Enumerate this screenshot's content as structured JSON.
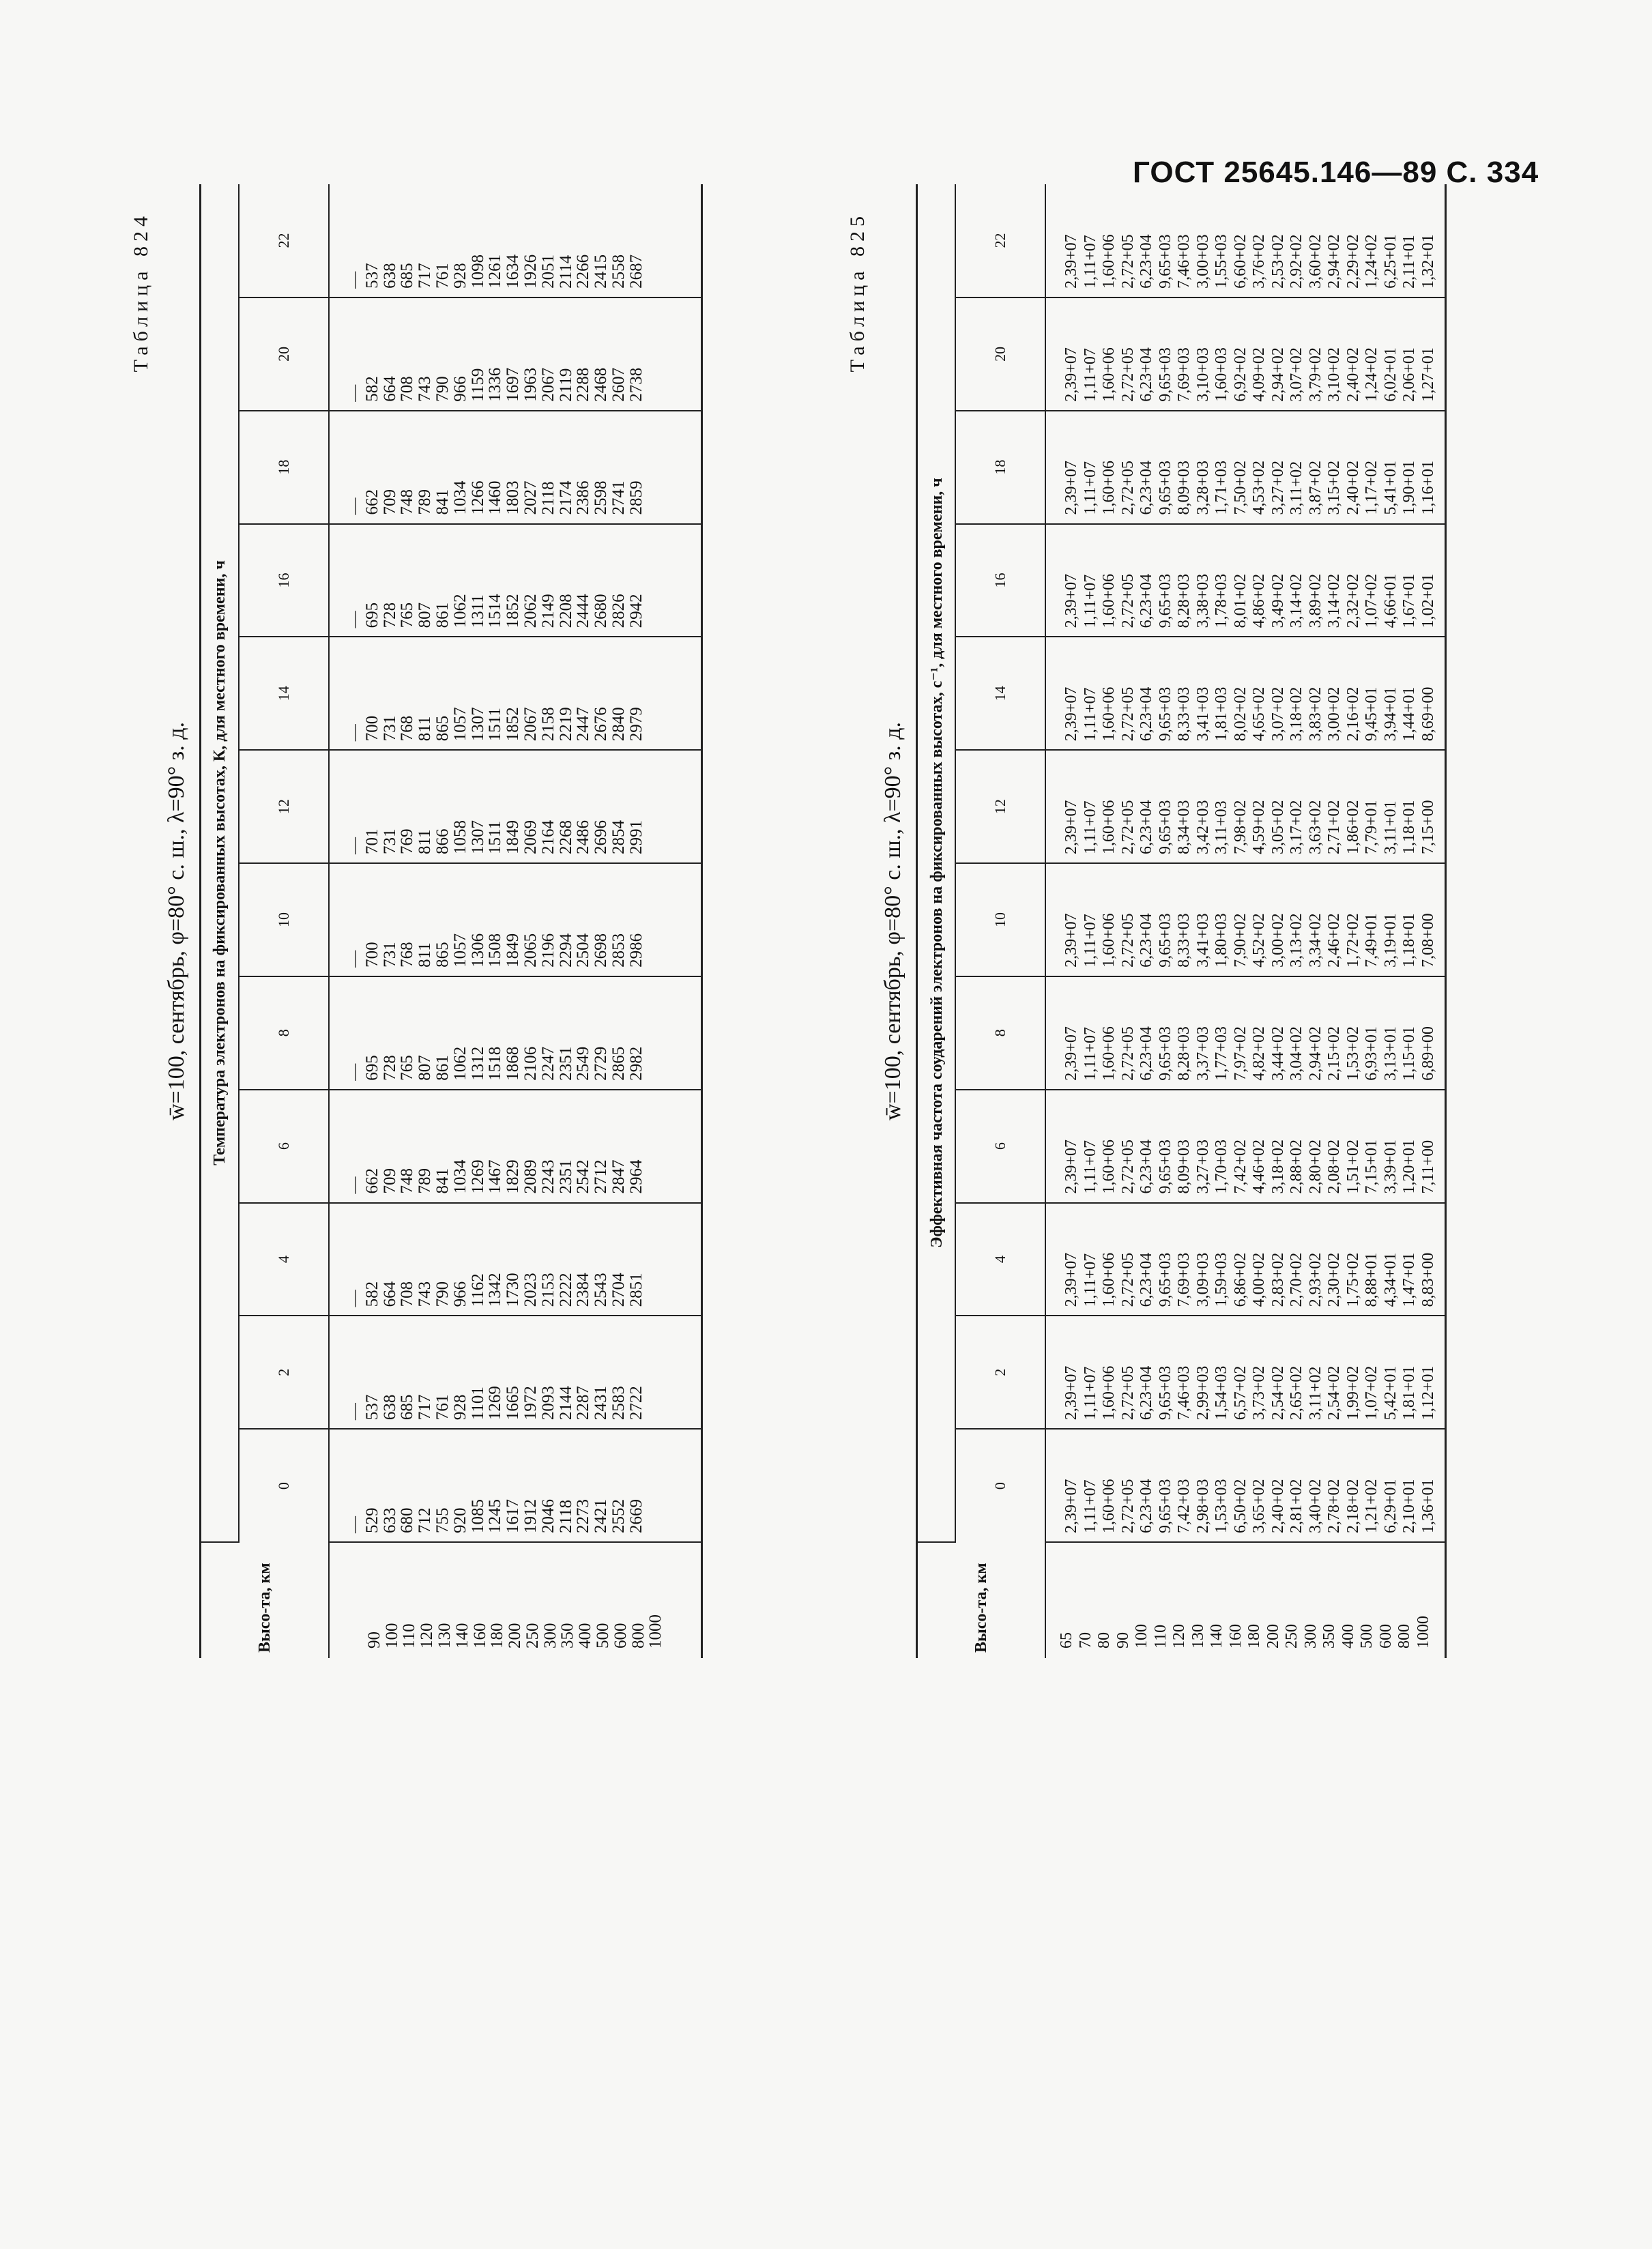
{
  "page_header": "ГОСТ 25645.146—89 С. 334",
  "hour_labels": [
    "0",
    "2",
    "4",
    "6",
    "8",
    "10",
    "12",
    "14",
    "16",
    "18",
    "20",
    "22"
  ],
  "table824": {
    "label": "Таблица 824",
    "subtitle": "w̄=100, сентябрь, φ=80° с. ш., λ=90° з. д.",
    "height_header": "Высо-та, км",
    "group_header": "Температура электронов на фиксированных высотах, К, для местного времени, ч",
    "heights": [
      "90",
      "100",
      "110",
      "120",
      "130",
      "140",
      "160",
      "180",
      "200",
      "250",
      "300",
      "350",
      "400",
      "500",
      "600",
      "800",
      "1000"
    ],
    "columns": [
      [
        "—",
        "529",
        "633",
        "680",
        "712",
        "755",
        "920",
        "1085",
        "1245",
        "1617",
        "1912",
        "2046",
        "2118",
        "2273",
        "2421",
        "2552",
        "2669"
      ],
      [
        "—",
        "537",
        "638",
        "685",
        "717",
        "761",
        "928",
        "1101",
        "1269",
        "1665",
        "1972",
        "2093",
        "2144",
        "2287",
        "2431",
        "2583",
        "2722"
      ],
      [
        "—",
        "582",
        "664",
        "708",
        "743",
        "790",
        "966",
        "1162",
        "1342",
        "1730",
        "2023",
        "2153",
        "2222",
        "2384",
        "2543",
        "2704",
        "2851"
      ],
      [
        "—",
        "662",
        "709",
        "748",
        "789",
        "841",
        "1034",
        "1269",
        "1467",
        "1829",
        "2089",
        "2243",
        "2351",
        "2542",
        "2712",
        "2847",
        "2964"
      ],
      [
        "—",
        "695",
        "728",
        "765",
        "807",
        "861",
        "1062",
        "1312",
        "1518",
        "1868",
        "2106",
        "2247",
        "2351",
        "2549",
        "2729",
        "2865",
        "2982"
      ],
      [
        "—",
        "700",
        "731",
        "768",
        "811",
        "865",
        "1057",
        "1306",
        "1508",
        "1849",
        "2065",
        "2196",
        "2294",
        "2504",
        "2698",
        "2853",
        "2986"
      ],
      [
        "—",
        "701",
        "731",
        "769",
        "811",
        "866",
        "1058",
        "1307",
        "1511",
        "1849",
        "2069",
        "2164",
        "2268",
        "2486",
        "2696",
        "2854",
        "2991"
      ],
      [
        "—",
        "700",
        "731",
        "768",
        "811",
        "865",
        "1057",
        "1307",
        "1511",
        "1852",
        "2067",
        "2158",
        "2219",
        "2447",
        "2676",
        "2840",
        "2979"
      ],
      [
        "—",
        "695",
        "728",
        "765",
        "807",
        "861",
        "1062",
        "1311",
        "1514",
        "1852",
        "2062",
        "2149",
        "2208",
        "2444",
        "2680",
        "2826",
        "2942"
      ],
      [
        "—",
        "662",
        "709",
        "748",
        "789",
        "841",
        "1034",
        "1266",
        "1460",
        "1803",
        "2027",
        "2118",
        "2174",
        "2386",
        "2598",
        "2741",
        "2859"
      ],
      [
        "—",
        "582",
        "664",
        "708",
        "743",
        "790",
        "966",
        "1159",
        "1336",
        "1697",
        "1963",
        "2067",
        "2119",
        "2288",
        "2468",
        "2607",
        "2738"
      ],
      [
        "—",
        "537",
        "638",
        "685",
        "717",
        "761",
        "928",
        "1098",
        "1261",
        "1634",
        "1926",
        "2051",
        "2114",
        "2266",
        "2415",
        "2558",
        "2687"
      ]
    ]
  },
  "table825": {
    "label": "Таблица 825",
    "subtitle": "w̄=100, сентябрь, φ=80° с. ш., λ=90° з. д.",
    "height_header": "Высо-та, км",
    "group_header": "Эффективная частота соударений электронов на фиксированных высотах, с⁻¹, для местного времени, ч",
    "heights": [
      "65",
      "70",
      "80",
      "90",
      "100",
      "110",
      "120",
      "130",
      "140",
      "160",
      "180",
      "200",
      "250",
      "300",
      "350",
      "400",
      "500",
      "600",
      "800",
      "1000"
    ],
    "columns": [
      [
        "2,39+07",
        "1,11+07",
        "1,60+06",
        "2,72+05",
        "6,23+04",
        "9,65+03",
        "7,42+03",
        "2,98+03",
        "1,53+03",
        "6,50+02",
        "3,65+02",
        "2,40+02",
        "2,81+02",
        "3,40+02",
        "2,78+02",
        "2,18+02",
        "1,21+02",
        "6,29+01",
        "2,10+01",
        "1,36+01"
      ],
      [
        "2,39+07",
        "1,11+07",
        "1,60+06",
        "2,72+05",
        "6,23+04",
        "9,65+03",
        "7,46+03",
        "2,99+03",
        "1,54+03",
        "6,57+02",
        "3,73+02",
        "2,54+02",
        "2,65+02",
        "3,11+02",
        "2,54+02",
        "1,99+02",
        "1,07+02",
        "5,42+01",
        "1,81+01",
        "1,12+01"
      ],
      [
        "2,39+07",
        "1,11+07",
        "1,60+06",
        "2,72+05",
        "6,23+04",
        "9,65+03",
        "7,69+03",
        "3,09+03",
        "1,59+03",
        "6,86+02",
        "4,00+02",
        "2,83+02",
        "2,70+02",
        "2,93+02",
        "2,30+02",
        "1,75+02",
        "8,88+01",
        "4,34+01",
        "1,47+01",
        "8,83+00"
      ],
      [
        "2,39+07",
        "1,11+07",
        "1,60+06",
        "2,72+05",
        "6,23+04",
        "9,65+03",
        "8,09+03",
        "3,27+03",
        "1,70+03",
        "7,42+02",
        "4,46+02",
        "3,18+02",
        "2,88+02",
        "2,80+02",
        "2,08+02",
        "1,51+02",
        "7,15+01",
        "3,39+01",
        "1,20+01",
        "7,11+00"
      ],
      [
        "2,39+07",
        "1,11+07",
        "1,60+06",
        "2,72+05",
        "6,23+04",
        "9,65+03",
        "8,28+03",
        "3,37+03",
        "1,77+03",
        "7,97+02",
        "4,82+02",
        "3,44+02",
        "3,04+02",
        "2,94+02",
        "2,15+02",
        "1,53+02",
        "6,93+01",
        "3,13+01",
        "1,15+01",
        "6,89+00"
      ],
      [
        "2,39+07",
        "1,11+07",
        "1,60+06",
        "2,72+05",
        "6,23+04",
        "9,65+03",
        "8,33+03",
        "3,41+03",
        "1,80+03",
        "7,90+02",
        "4,52+02",
        "3,00+02",
        "3,13+02",
        "3,34+02",
        "2,46+02",
        "1,72+02",
        "7,49+01",
        "3,19+01",
        "1,18+01",
        "7,08+00"
      ],
      [
        "2,39+07",
        "1,11+07",
        "1,60+06",
        "2,72+05",
        "6,23+04",
        "9,65+03",
        "8,34+03",
        "3,42+03",
        "3,11+03",
        "7,98+02",
        "4,59+02",
        "3,05+02",
        "3,17+02",
        "3,63+02",
        "2,71+02",
        "1,86+02",
        "7,79+01",
        "3,11+01",
        "1,18+01",
        "7,15+00"
      ],
      [
        "2,39+07",
        "1,11+07",
        "1,60+06",
        "2,72+05",
        "6,23+04",
        "9,65+03",
        "8,33+03",
        "3,41+03",
        "1,81+03",
        "8,02+02",
        "4,65+02",
        "3,07+02",
        "3,18+02",
        "3,83+02",
        "3,00+02",
        "2,16+02",
        "9,45+01",
        "3,94+01",
        "1,44+01",
        "8,69+00"
      ],
      [
        "2,39+07",
        "1,11+07",
        "1,60+06",
        "2,72+05",
        "6,23+04",
        "9,65+03",
        "8,28+03",
        "3,38+03",
        "1,78+03",
        "8,01+02",
        "4,86+02",
        "3,49+02",
        "3,14+02",
        "3,89+02",
        "3,14+02",
        "2,32+02",
        "1,07+02",
        "4,66+01",
        "1,67+01",
        "1,02+01"
      ],
      [
        "2,39+07",
        "1,11+07",
        "1,60+06",
        "2,72+05",
        "6,23+04",
        "9,65+03",
        "8,09+03",
        "3,28+03",
        "1,71+03",
        "7,50+02",
        "4,53+02",
        "3,27+02",
        "3,11+02",
        "3,87+02",
        "3,15+02",
        "2,40+02",
        "1,17+02",
        "5,41+01",
        "1,90+01",
        "1,16+01"
      ],
      [
        "2,39+07",
        "1,11+07",
        "1,60+06",
        "2,72+05",
        "6,23+04",
        "9,65+03",
        "7,69+03",
        "3,10+03",
        "1,60+03",
        "6,92+02",
        "4,09+02",
        "2,94+02",
        "3,07+02",
        "3,79+02",
        "3,10+02",
        "2,40+02",
        "1,24+02",
        "6,02+01",
        "2,06+01",
        "1,27+01"
      ],
      [
        "2,39+07",
        "1,11+07",
        "1,60+06",
        "2,72+05",
        "6,23+04",
        "9,65+03",
        "7,46+03",
        "3,00+03",
        "1,55+03",
        "6,60+02",
        "3,76+02",
        "2,53+02",
        "2,92+02",
        "3,60+02",
        "2,94+02",
        "2,29+02",
        "1,24+02",
        "6,25+01",
        "2,11+01",
        "1,32+01"
      ]
    ]
  }
}
